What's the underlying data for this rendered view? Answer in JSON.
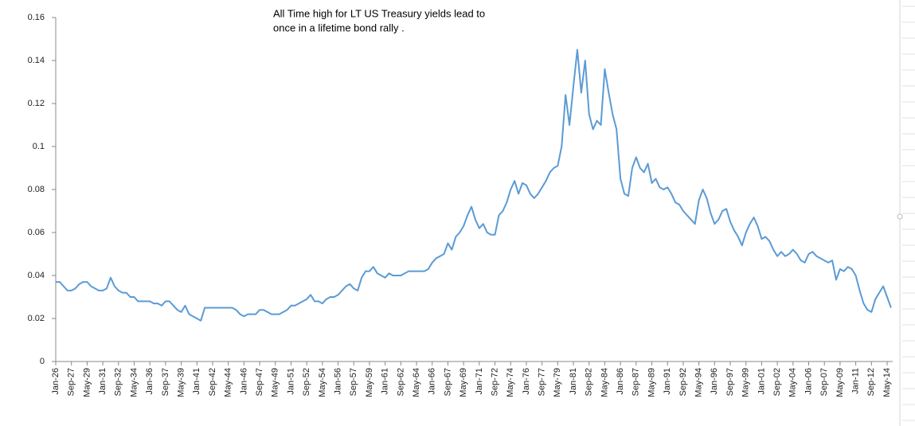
{
  "chart_data": {
    "type": "line",
    "annotation": [
      "All Time high for LT US Treasury yields lead to",
      "once in a lifetime bond rally ."
    ],
    "categories": [
      "Jan-26",
      null,
      null,
      null,
      "Sep-27",
      null,
      null,
      null,
      "May-29",
      null,
      null,
      null,
      "Jan-31",
      null,
      null,
      null,
      "Sep-32",
      null,
      null,
      null,
      "May-34",
      null,
      null,
      null,
      "Jan-36",
      null,
      null,
      null,
      "Sep-37",
      null,
      null,
      null,
      "May-39",
      null,
      null,
      null,
      "Jan-41",
      null,
      null,
      null,
      "Sep-42",
      null,
      null,
      null,
      "May-44",
      null,
      null,
      null,
      "Jan-46",
      null,
      null,
      null,
      "Sep-47",
      null,
      null,
      null,
      "May-49",
      null,
      null,
      null,
      "Jan-51",
      null,
      null,
      null,
      "Sep-52",
      null,
      null,
      null,
      "May-54",
      null,
      null,
      null,
      "Jan-56",
      null,
      null,
      null,
      "Sep-57",
      null,
      null,
      null,
      "May-59",
      null,
      null,
      null,
      "Jan-61",
      null,
      null,
      null,
      "Sep-62",
      null,
      null,
      null,
      "May-64",
      null,
      null,
      null,
      "Jan-66",
      null,
      null,
      null,
      "Sep-67",
      null,
      null,
      null,
      "May-69",
      null,
      null,
      null,
      "Jan-71",
      null,
      null,
      null,
      "Sep-72",
      null,
      null,
      null,
      "May-74",
      null,
      null,
      null,
      "Jan-76",
      null,
      null,
      null,
      "Sep-77",
      null,
      null,
      null,
      "May-79",
      null,
      null,
      null,
      "Jan-81",
      null,
      null,
      null,
      "Sep-82",
      null,
      null,
      null,
      "May-84",
      null,
      null,
      null,
      "Jan-86",
      null,
      null,
      null,
      "Sep-87",
      null,
      null,
      null,
      "May-89",
      null,
      null,
      null,
      "Jan-91",
      null,
      null,
      null,
      "Sep-92",
      null,
      null,
      null,
      "May-94",
      null,
      null,
      null,
      "Jan-96",
      null,
      null,
      null,
      "Sep-97",
      null,
      null,
      null,
      "May-99",
      null,
      null,
      null,
      "Jan-01",
      null,
      null,
      null,
      "Sep-02",
      null,
      null,
      null,
      "May-04",
      null,
      null,
      null,
      "Jan-06",
      null,
      null,
      null,
      "Sep-07",
      null,
      null,
      null,
      "May-09",
      null,
      null,
      null,
      "Jan-11",
      null,
      null,
      null,
      "Sep-12",
      null,
      null,
      null,
      "May-14",
      null
    ],
    "values": [
      0.037,
      0.037,
      0.035,
      0.033,
      0.033,
      0.034,
      0.036,
      0.037,
      0.037,
      0.035,
      0.034,
      0.033,
      0.033,
      0.034,
      0.039,
      0.035,
      0.033,
      0.032,
      0.032,
      0.03,
      0.03,
      0.028,
      0.028,
      0.028,
      0.028,
      0.027,
      0.027,
      0.026,
      0.028,
      0.028,
      0.026,
      0.024,
      0.023,
      0.026,
      0.022,
      0.021,
      0.02,
      0.019,
      0.025,
      0.025,
      0.025,
      0.025,
      0.025,
      0.025,
      0.025,
      0.025,
      0.024,
      0.022,
      0.021,
      0.022,
      0.022,
      0.022,
      0.024,
      0.024,
      0.023,
      0.022,
      0.022,
      0.022,
      0.023,
      0.024,
      0.026,
      0.026,
      0.027,
      0.028,
      0.029,
      0.031,
      0.028,
      0.028,
      0.027,
      0.029,
      0.03,
      0.03,
      0.031,
      0.033,
      0.035,
      0.036,
      0.034,
      0.033,
      0.039,
      0.042,
      0.042,
      0.044,
      0.041,
      0.04,
      0.039,
      0.041,
      0.04,
      0.04,
      0.04,
      0.041,
      0.042,
      0.042,
      0.042,
      0.042,
      0.042,
      0.043,
      0.046,
      0.048,
      0.049,
      0.05,
      0.055,
      0.052,
      0.058,
      0.06,
      0.063,
      0.068,
      0.072,
      0.066,
      0.062,
      0.064,
      0.06,
      0.059,
      0.059,
      0.068,
      0.07,
      0.074,
      0.08,
      0.084,
      0.078,
      0.083,
      0.082,
      0.078,
      0.076,
      0.078,
      0.081,
      0.084,
      0.088,
      0.09,
      0.091,
      0.1,
      0.124,
      0.11,
      0.128,
      0.145,
      0.125,
      0.14,
      0.115,
      0.108,
      0.112,
      0.11,
      0.136,
      0.125,
      0.115,
      0.108,
      0.085,
      0.078,
      0.077,
      0.09,
      0.095,
      0.09,
      0.088,
      0.092,
      0.083,
      0.085,
      0.081,
      0.08,
      0.081,
      0.078,
      0.074,
      0.073,
      0.07,
      0.068,
      0.066,
      0.064,
      0.075,
      0.08,
      0.076,
      0.069,
      0.064,
      0.066,
      0.07,
      0.071,
      0.065,
      0.061,
      0.058,
      0.054,
      0.06,
      0.064,
      0.067,
      0.063,
      0.057,
      0.058,
      0.056,
      0.052,
      0.049,
      0.051,
      0.049,
      0.05,
      0.052,
      0.05,
      0.047,
      0.046,
      0.05,
      0.051,
      0.049,
      0.048,
      0.047,
      0.046,
      0.047,
      0.038,
      0.043,
      0.042,
      0.044,
      0.043,
      0.04,
      0.033,
      0.027,
      0.024,
      0.023,
      0.029,
      0.032,
      0.035,
      0.03,
      0.025
    ],
    "color": "#5b9bd5",
    "ylim": [
      0,
      0.16
    ],
    "yticks": [
      0,
      0.02,
      0.04,
      0.06,
      0.08,
      0.1,
      0.12,
      0.14,
      0.16
    ]
  }
}
